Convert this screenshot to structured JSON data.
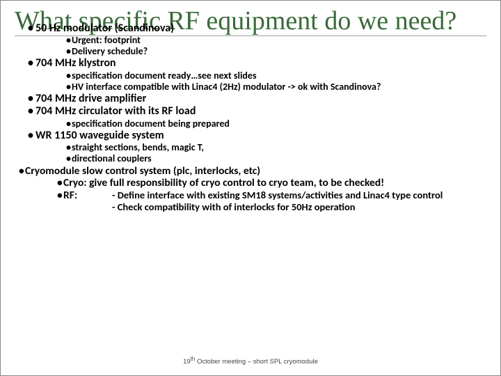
{
  "title": "What specific RF equipment do we need?",
  "items": {
    "l1_1": "50 Hz modulator (Scandinova)",
    "l2_1a": "Urgent: footprint",
    "l2_1b": "Delivery schedule?",
    "l1_2": "704 MHz klystron",
    "l2_2a": "specification document ready…see next slides",
    "l2_2b": "HV interface compatible with Linac4 (2Hz) modulator -> ok with Scandinova?",
    "l1_3": "704 MHz drive amplifier",
    "l1_4": "704 MHz circulator with its RF load",
    "l2_4a": "specification document being prepared",
    "l1_5": "WR 1150 waveguide system",
    "l2_5a": "straight sections, bends, magic T,",
    "l2_5b": "directional couplers",
    "l1_6": "Cryomodule slow control system (plc, interlocks, etc)",
    "l2_6a": "Cryo: give full responsibility of cryo control to cryo team, to be checked!",
    "l2_6b_label": "RF:",
    "rf_1": "- Define interface with existing SM18 systems/activities and Linac4 type control",
    "rf_2": "- Check compatibility with of interlocks for 50Hz operation"
  },
  "footer": "19th October meeting – short SPL cryomodule"
}
